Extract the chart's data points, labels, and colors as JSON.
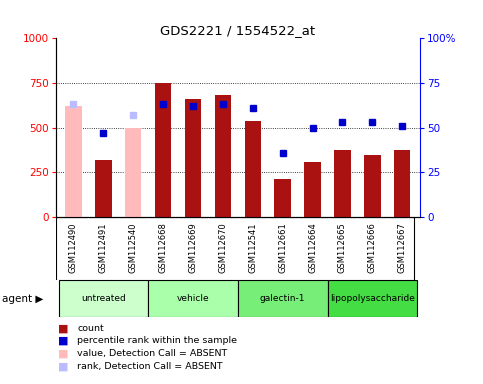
{
  "title": "GDS2221 / 1554522_at",
  "samples": [
    "GSM112490",
    "GSM112491",
    "GSM112540",
    "GSM112668",
    "GSM112669",
    "GSM112670",
    "GSM112541",
    "GSM112661",
    "GSM112664",
    "GSM112665",
    "GSM112666",
    "GSM112667"
  ],
  "groups": [
    {
      "label": "untreated",
      "color": "#ccffcc",
      "indices": [
        0,
        1,
        2
      ]
    },
    {
      "label": "vehicle",
      "color": "#aaffaa",
      "indices": [
        3,
        4,
        5
      ]
    },
    {
      "label": "galectin-1",
      "color": "#77ee77",
      "indices": [
        6,
        7,
        8
      ]
    },
    {
      "label": "lipopolysaccharide",
      "color": "#44dd44",
      "indices": [
        9,
        10,
        11
      ]
    }
  ],
  "count_values": [
    null,
    320,
    null,
    750,
    660,
    685,
    540,
    215,
    305,
    375,
    345,
    375
  ],
  "count_absent": [
    620,
    null,
    500,
    null,
    null,
    null,
    null,
    null,
    null,
    null,
    null,
    null
  ],
  "percentile_values": [
    null,
    47,
    null,
    63,
    62,
    63,
    61,
    36,
    50,
    53,
    53,
    51
  ],
  "percentile_absent": [
    63,
    null,
    57,
    null,
    null,
    null,
    null,
    null,
    null,
    null,
    null,
    null
  ],
  "ylim_left": [
    0,
    1000
  ],
  "ylim_right": [
    0,
    100
  ],
  "yticks_left": [
    0,
    250,
    500,
    750,
    1000
  ],
  "yticks_right": [
    0,
    25,
    50,
    75,
    100
  ],
  "color_count": "#aa1111",
  "color_percentile": "#0000cc",
  "color_absent_value": "#ffbbbb",
  "color_absent_rank": "#bbbbff",
  "bar_width": 0.55,
  "agent_label": "agent",
  "legend_items": [
    {
      "color": "#aa1111",
      "label": "count"
    },
    {
      "color": "#0000cc",
      "label": "percentile rank within the sample"
    },
    {
      "color": "#ffbbbb",
      "label": "value, Detection Call = ABSENT"
    },
    {
      "color": "#bbbbff",
      "label": "rank, Detection Call = ABSENT"
    }
  ]
}
